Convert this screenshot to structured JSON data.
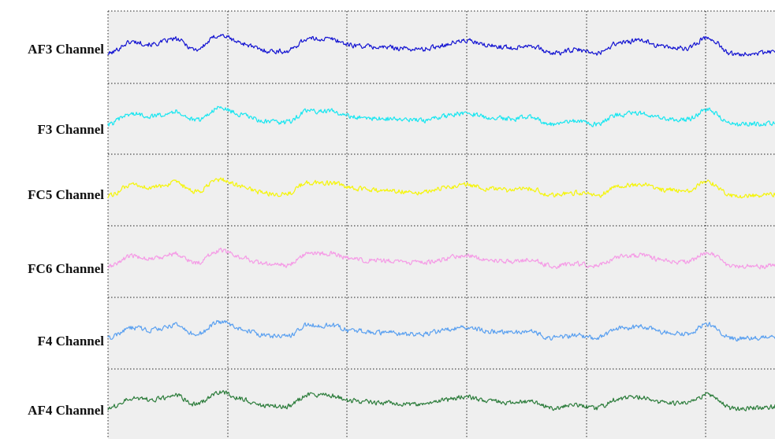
{
  "chart_data": {
    "type": "line",
    "title": "",
    "xlabel": "",
    "ylabel": "",
    "grid": true,
    "series": [
      {
        "name": "AF3 Channel",
        "color": "#1414d2"
      },
      {
        "name": "F3 Channel",
        "color": "#19e6f0"
      },
      {
        "name": "FC5 Channel",
        "color": "#f5f50a"
      },
      {
        "name": "FC6 Channel",
        "color": "#f59be6"
      },
      {
        "name": "F4 Channel",
        "color": "#5aa0f0"
      },
      {
        "name": "AF4 Channel",
        "color": "#2d7d3c"
      }
    ]
  }
}
